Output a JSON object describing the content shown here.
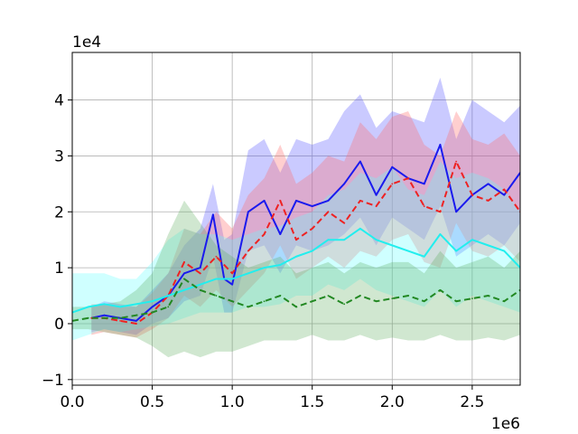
{
  "chart_data": {
    "type": "line",
    "title": "",
    "xlabel": "",
    "ylabel": "",
    "x_multiplier_label": "1e6",
    "y_multiplier_label": "1e4",
    "xlim": [
      0,
      2.8
    ],
    "ylim": [
      -1.1,
      4.85
    ],
    "x_ticks": [
      0.0,
      0.5,
      1.0,
      1.5,
      2.0,
      2.5
    ],
    "x_tick_labels": [
      "0.0",
      "0.5",
      "1.0",
      "1.5",
      "2.0",
      "2.5"
    ],
    "y_ticks": [
      -1,
      0,
      1,
      2,
      3,
      4
    ],
    "y_tick_labels": [
      "−1",
      "0",
      "1",
      "2",
      "3",
      "4"
    ],
    "grid": true,
    "legend": "none",
    "series": [
      {
        "color": "#1a1aee",
        "band_color": "#5a5aff",
        "line_style": "solid",
        "band_opacity": 0.32,
        "x": [
          0.12,
          0.2,
          0.3,
          0.4,
          0.5,
          0.6,
          0.7,
          0.8,
          0.88,
          0.95,
          1.0,
          1.1,
          1.2,
          1.3,
          1.4,
          1.5,
          1.6,
          1.7,
          1.8,
          1.9,
          2.0,
          2.1,
          2.2,
          2.3,
          2.4,
          2.5,
          2.6,
          2.7,
          2.8
        ],
        "y": [
          0.1,
          0.15,
          0.1,
          0.05,
          0.3,
          0.5,
          0.9,
          1.0,
          1.95,
          0.8,
          0.7,
          2.0,
          2.2,
          1.6,
          2.2,
          2.1,
          2.2,
          2.5,
          2.9,
          2.3,
          2.8,
          2.6,
          2.5,
          3.2,
          2.0,
          2.3,
          2.5,
          2.3,
          2.7
        ],
        "lower": [
          -0.15,
          -0.1,
          -0.15,
          -0.2,
          0.0,
          0.1,
          0.4,
          0.5,
          1.2,
          0.2,
          0.2,
          1.3,
          1.4,
          0.9,
          1.4,
          1.3,
          1.4,
          1.6,
          1.9,
          1.4,
          1.9,
          1.7,
          1.5,
          2.1,
          1.2,
          1.4,
          1.6,
          1.4,
          1.8
        ],
        "upper": [
          0.3,
          0.4,
          0.35,
          0.3,
          0.6,
          0.9,
          1.4,
          1.7,
          2.5,
          1.5,
          1.6,
          3.1,
          3.3,
          2.7,
          3.3,
          3.2,
          3.3,
          3.8,
          4.1,
          3.5,
          3.8,
          3.7,
          3.6,
          4.4,
          3.3,
          4.0,
          3.8,
          3.6,
          3.9
        ]
      },
      {
        "color": "#ee2222",
        "band_color": "#ff6a6a",
        "line_style": "dashed",
        "band_opacity": 0.32,
        "x": [
          0.12,
          0.2,
          0.3,
          0.4,
          0.5,
          0.6,
          0.7,
          0.8,
          0.9,
          1.0,
          1.1,
          1.2,
          1.3,
          1.4,
          1.5,
          1.6,
          1.7,
          1.8,
          1.9,
          2.0,
          2.1,
          2.2,
          2.3,
          2.4,
          2.5,
          2.6,
          2.7,
          2.8
        ],
        "y": [
          0.1,
          0.1,
          0.05,
          0.0,
          0.2,
          0.5,
          1.1,
          0.9,
          1.2,
          0.9,
          1.3,
          1.6,
          2.2,
          1.5,
          1.7,
          2.0,
          1.8,
          2.2,
          2.1,
          2.5,
          2.6,
          2.1,
          2.0,
          2.9,
          2.3,
          2.2,
          2.4,
          2.0
        ],
        "lower": [
          -0.2,
          -0.15,
          -0.2,
          -0.25,
          -0.1,
          0.1,
          0.5,
          0.3,
          0.6,
          0.3,
          0.6,
          0.9,
          1.4,
          0.8,
          1.0,
          1.2,
          1.0,
          1.3,
          1.2,
          1.5,
          1.6,
          1.1,
          1.0,
          1.8,
          1.3,
          1.2,
          1.4,
          1.1
        ],
        "upper": [
          0.35,
          0.35,
          0.3,
          0.3,
          0.55,
          0.9,
          1.7,
          1.6,
          2.0,
          1.7,
          2.3,
          2.6,
          3.2,
          2.5,
          2.7,
          3.0,
          2.9,
          3.6,
          3.3,
          3.7,
          3.8,
          3.2,
          3.0,
          3.8,
          3.3,
          3.2,
          3.4,
          3.0
        ]
      },
      {
        "color": "#22eeee",
        "band_color": "#5fffff",
        "line_style": "solid",
        "band_opacity": 0.3,
        "x": [
          0.0,
          0.1,
          0.2,
          0.3,
          0.4,
          0.5,
          0.6,
          0.7,
          0.8,
          0.9,
          1.0,
          1.1,
          1.2,
          1.3,
          1.4,
          1.5,
          1.6,
          1.7,
          1.8,
          1.9,
          2.0,
          2.1,
          2.2,
          2.3,
          2.4,
          2.5,
          2.6,
          2.7,
          2.8
        ],
        "y": [
          0.2,
          0.3,
          0.35,
          0.3,
          0.35,
          0.4,
          0.5,
          0.6,
          0.7,
          0.8,
          0.8,
          0.9,
          1.0,
          1.05,
          1.2,
          1.3,
          1.5,
          1.5,
          1.7,
          1.5,
          1.4,
          1.3,
          1.2,
          1.6,
          1.3,
          1.5,
          1.4,
          1.3,
          1.0
        ],
        "lower": [
          -0.3,
          -0.2,
          -0.1,
          -0.15,
          -0.1,
          -0.05,
          0.0,
          0.1,
          0.2,
          0.2,
          0.2,
          0.3,
          0.3,
          0.35,
          0.5,
          0.5,
          0.7,
          0.6,
          0.8,
          0.6,
          0.5,
          0.4,
          0.3,
          0.6,
          0.3,
          0.5,
          0.4,
          0.3,
          0.2
        ],
        "upper": [
          0.9,
          0.9,
          0.9,
          0.8,
          0.8,
          1.1,
          1.5,
          1.7,
          1.6,
          1.6,
          1.5,
          1.6,
          1.7,
          1.75,
          1.9,
          2.0,
          2.3,
          2.4,
          2.7,
          2.6,
          2.8,
          2.4,
          2.3,
          2.9,
          2.6,
          2.7,
          2.6,
          2.4,
          2.0
        ]
      },
      {
        "color": "#228822",
        "band_color": "#55aa55",
        "line_style": "dashed",
        "band_opacity": 0.28,
        "x": [
          0.0,
          0.1,
          0.2,
          0.3,
          0.4,
          0.5,
          0.6,
          0.7,
          0.8,
          0.9,
          1.0,
          1.1,
          1.2,
          1.3,
          1.4,
          1.5,
          1.6,
          1.7,
          1.8,
          1.9,
          2.0,
          2.1,
          2.2,
          2.3,
          2.4,
          2.5,
          2.6,
          2.7,
          2.8
        ],
        "y": [
          0.05,
          0.1,
          0.1,
          0.1,
          0.15,
          0.2,
          0.3,
          0.8,
          0.6,
          0.5,
          0.4,
          0.3,
          0.4,
          0.5,
          0.3,
          0.4,
          0.5,
          0.35,
          0.5,
          0.4,
          0.45,
          0.5,
          0.4,
          0.6,
          0.4,
          0.45,
          0.5,
          0.4,
          0.6
        ],
        "lower": [
          -0.1,
          -0.1,
          -0.15,
          -0.2,
          -0.25,
          -0.4,
          -0.6,
          -0.5,
          -0.6,
          -0.5,
          -0.5,
          -0.4,
          -0.3,
          -0.3,
          -0.3,
          -0.2,
          -0.3,
          -0.3,
          -0.2,
          -0.3,
          -0.25,
          -0.3,
          -0.3,
          -0.2,
          -0.3,
          -0.3,
          -0.25,
          -0.3,
          -0.2
        ],
        "upper": [
          0.3,
          0.3,
          0.35,
          0.4,
          0.6,
          0.9,
          1.6,
          2.2,
          1.8,
          1.4,
          1.2,
          1.0,
          1.1,
          1.2,
          0.9,
          1.0,
          1.1,
          0.9,
          1.1,
          1.0,
          1.1,
          1.1,
          0.9,
          1.3,
          1.0,
          1.1,
          1.2,
          1.0,
          1.3
        ]
      }
    ]
  }
}
